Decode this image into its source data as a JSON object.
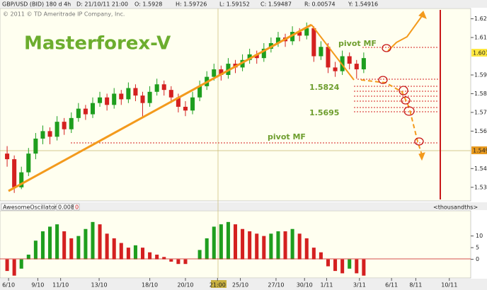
{
  "header": {
    "symbol": "GBP/USD (BID) 180 d 4h",
    "date": "D: 21/10/11 21:00",
    "open": "O: 1.5928",
    "high": "H: 1.59726",
    "low": "L: 1.59152",
    "close": "C: 1.59487",
    "range": "R: 0.00574",
    "y": "Y: 1.54916",
    "copyright": "© 2011 © TD Ameritrade IP Company, Inc."
  },
  "chart_data": [
    {
      "type": "candlestick",
      "title": "Masterforex-V",
      "candles": [
        [
          1.548,
          1.552,
          1.541,
          1.545
        ],
        [
          1.545,
          1.547,
          1.527,
          1.53
        ],
        [
          1.53,
          1.541,
          1.529,
          1.538
        ],
        [
          1.538,
          1.551,
          1.536,
          1.548
        ],
        [
          1.548,
          1.559,
          1.545,
          1.556
        ],
        [
          1.556,
          1.563,
          1.553,
          1.56
        ],
        [
          1.56,
          1.562,
          1.553,
          1.557
        ],
        [
          1.557,
          1.568,
          1.555,
          1.565
        ],
        [
          1.565,
          1.567,
          1.558,
          1.561
        ],
        [
          1.561,
          1.57,
          1.559,
          1.567
        ],
        [
          1.567,
          1.575,
          1.565,
          1.572
        ],
        [
          1.572,
          1.574,
          1.566,
          1.569
        ],
        [
          1.569,
          1.578,
          1.567,
          1.575
        ],
        [
          1.575,
          1.581,
          1.573,
          1.578
        ],
        [
          1.578,
          1.58,
          1.571,
          1.574
        ],
        [
          1.574,
          1.583,
          1.572,
          1.58
        ],
        [
          1.58,
          1.582,
          1.574,
          1.577
        ],
        [
          1.577,
          1.586,
          1.575,
          1.583
        ],
        [
          1.583,
          1.585,
          1.576,
          1.579
        ],
        [
          1.579,
          1.581,
          1.567,
          1.575
        ],
        [
          1.575,
          1.584,
          1.573,
          1.581
        ],
        [
          1.581,
          1.588,
          1.579,
          1.585
        ],
        [
          1.585,
          1.587,
          1.579,
          1.582
        ],
        [
          1.582,
          1.584,
          1.575,
          1.578
        ],
        [
          1.578,
          1.58,
          1.57,
          1.573
        ],
        [
          1.573,
          1.576,
          1.568,
          1.571
        ],
        [
          1.571,
          1.581,
          1.569,
          1.578
        ],
        [
          1.578,
          1.587,
          1.576,
          1.584
        ],
        [
          1.584,
          1.592,
          1.582,
          1.589
        ],
        [
          1.589,
          1.596,
          1.587,
          1.593
        ],
        [
          1.593,
          1.595,
          1.587,
          1.59
        ],
        [
          1.59,
          1.599,
          1.588,
          1.596
        ],
        [
          1.596,
          1.598,
          1.591,
          1.594
        ],
        [
          1.594,
          1.601,
          1.592,
          1.598
        ],
        [
          1.598,
          1.604,
          1.596,
          1.601
        ],
        [
          1.601,
          1.603,
          1.596,
          1.599
        ],
        [
          1.599,
          1.607,
          1.597,
          1.604
        ],
        [
          1.604,
          1.61,
          1.602,
          1.607
        ],
        [
          1.607,
          1.613,
          1.605,
          1.61
        ],
        [
          1.61,
          1.612,
          1.605,
          1.608
        ],
        [
          1.608,
          1.616,
          1.606,
          1.613
        ],
        [
          1.613,
          1.615,
          1.608,
          1.611
        ],
        [
          1.611,
          1.618,
          1.609,
          1.615
        ],
        [
          1.615,
          1.616,
          1.597,
          1.6
        ],
        [
          1.6,
          1.608,
          1.598,
          1.605
        ],
        [
          1.605,
          1.607,
          1.591,
          1.594
        ],
        [
          1.594,
          1.597,
          1.589,
          1.592
        ],
        [
          1.592,
          1.603,
          1.59,
          1.6
        ],
        [
          1.6,
          1.602,
          1.593,
          1.596
        ],
        [
          1.596,
          1.598,
          1.588,
          1.593
        ],
        [
          1.593,
          1.602,
          1.591,
          1.599
        ]
      ],
      "up_color": "#1e9e1e",
      "down_color": "#d42020",
      "xlim": [
        0,
        66
      ],
      "xticks": [
        {
          "value": 1.2,
          "label": "6/10"
        },
        {
          "value": 5.3,
          "label": "9/10"
        },
        {
          "value": 8.5,
          "label": "11/10"
        },
        {
          "value": 13.9,
          "label": "13/10"
        },
        {
          "value": 21,
          "label": "18/10"
        },
        {
          "value": 26,
          "label": "20/10"
        },
        {
          "value": 30.5,
          "label": "21:00"
        },
        {
          "value": 33.7,
          "label": "25/10"
        },
        {
          "value": 38.7,
          "label": "27/10"
        },
        {
          "value": 42.7,
          "label": "30/10"
        },
        {
          "value": 45.8,
          "label": "1/11"
        },
        {
          "value": 50.4,
          "label": "3/11"
        },
        {
          "value": 54.9,
          "label": "6/11"
        },
        {
          "value": 58.3,
          "label": "8/11"
        },
        {
          "value": 63,
          "label": "10/11"
        }
      ],
      "ylim": [
        1.5235,
        1.6255
      ],
      "yticks": [
        1.53,
        1.54,
        1.56,
        1.57,
        1.58,
        1.59,
        1.61,
        1.62
      ],
      "annotations": [
        "pivot MF",
        "1.5824",
        "1.5695",
        "pivot MF"
      ],
      "price_labels": [
        "1.601",
        "1.549"
      ]
    },
    {
      "type": "bar",
      "title": "AwesomeOscillator",
      "value_label": "0.0084",
      "zero_label": "0",
      "unit_label": "<thousandths>",
      "values": [
        -5,
        -7,
        -4,
        2,
        8,
        12,
        14,
        15,
        12,
        9,
        10,
        13,
        16,
        15,
        11,
        9,
        7,
        5,
        6,
        5,
        3,
        2,
        1,
        -1,
        -2,
        -2,
        0,
        4,
        9,
        14,
        15,
        16,
        15,
        13,
        12,
        11,
        10,
        11,
        12,
        12,
        13,
        11,
        9,
        5,
        3,
        -3,
        -5,
        -6,
        -4,
        -6,
        -7
      ],
      "up_color": "#1e9e1e",
      "down_color": "#d42020",
      "ylim": [
        -8,
        20.5
      ],
      "yticks": [
        0,
        5,
        10
      ]
    }
  ]
}
